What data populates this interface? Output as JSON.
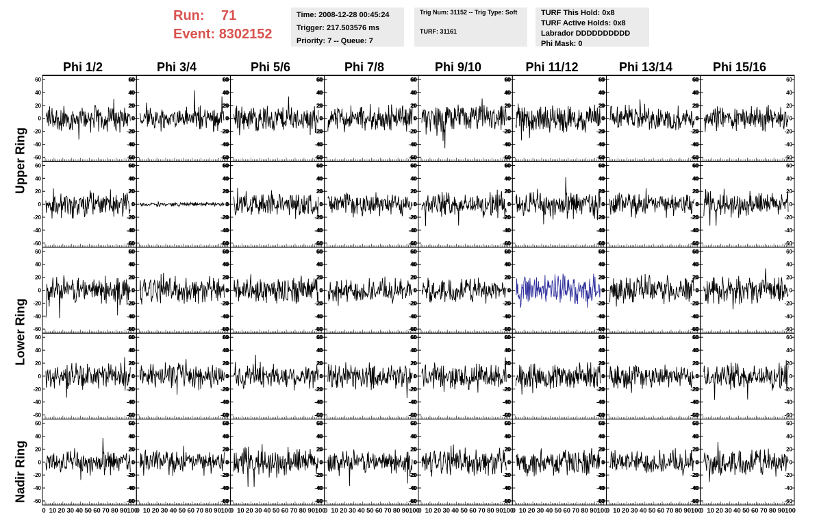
{
  "header": {
    "run_label": "Run:",
    "run_value": "71",
    "event_label": "Event:",
    "event_value": "8302152",
    "accent_color": "#d9534f"
  },
  "info_panel_1": {
    "time": "Time: 2008-12-28 00:45:24",
    "trigger": "Trigger: 217.503576 ms",
    "priority": "Priority: 7 -- Queue: 7"
  },
  "info_panel_2": {
    "trig": "Trig Num: 31152 -- Trig Type: Soft",
    "turf": "TURF: 31161"
  },
  "info_panel_3": {
    "turf_hold": "TURF This Hold: 0x8",
    "turf_active": "TURF Active Holds: 0x8",
    "labrador": "Labrador DDDDDDDDDD",
    "phi_mask": "Phi Mask: 0"
  },
  "columns": [
    "Phi 1/2",
    "Phi 3/4",
    "Phi 5/6",
    "Phi 7/8",
    "Phi 9/10",
    "Phi 11/12",
    "Phi 13/14",
    "Phi 15/16"
  ],
  "row_labels": [
    "Upper Ring",
    "Lower Ring",
    "Nadir Ring"
  ],
  "y_ticks": [
    "60",
    "40",
    "20",
    "0",
    "-20",
    "-40",
    "-60"
  ],
  "x_ticks": [
    "0",
    "10",
    "20",
    "30",
    "40",
    "50",
    "60",
    "70",
    "80",
    "90",
    "100"
  ],
  "trace_color": "#000000",
  "highlight_color": "#2b2b9a",
  "highlight_panel": {
    "row": 2,
    "col": 5
  },
  "quiet_panel": {
    "row": 1,
    "col": 1
  }
}
